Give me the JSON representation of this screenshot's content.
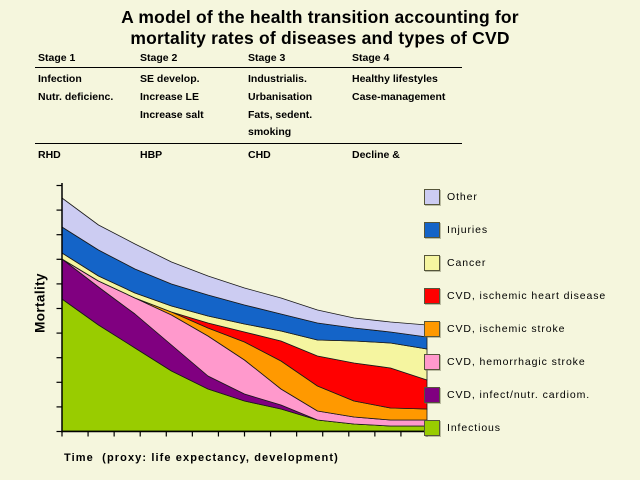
{
  "title": {
    "line1": "A model of the health transition accounting for",
    "line2": "mortality rates of diseases and types of CVD"
  },
  "stage_table": {
    "columns": [
      {
        "header": "Stage 1",
        "rows": [
          "Infection",
          "Nutr. deficienc.",
          "",
          ""
        ],
        "footer": "RHD"
      },
      {
        "header": "Stage 2",
        "rows": [
          "SE develop.",
          "Increase LE",
          "Increase salt",
          ""
        ],
        "footer": "HBP"
      },
      {
        "header": "Stage 3",
        "rows": [
          "Industrialis.",
          "Urbanisation",
          "Fats, sedent.",
          "smoking"
        ],
        "footer": "CHD"
      },
      {
        "header": "Stage 4",
        "rows": [
          "Healthy lifestyles",
          "Case-management",
          "",
          ""
        ],
        "footer": "Decline &"
      }
    ]
  },
  "chart_data": {
    "type": "area",
    "stacked": true,
    "title": "",
    "xlabel": "Time  (proxy: life expectancy, development)",
    "ylabel": "Mortality",
    "x": [
      0,
      1,
      2,
      3,
      4,
      5,
      6,
      7,
      8,
      9,
      10
    ],
    "x_axis": {
      "tick_count": 15,
      "tick_labels_shown": false
    },
    "y_axis": {
      "tick_count": 11,
      "tick_labels_shown": false,
      "units": "relative mortality (axis unlabeled)"
    },
    "ylim": [
      0,
      250
    ],
    "grid": false,
    "legend_position": "right",
    "series": [
      {
        "name": "Infectious",
        "color": "#99CC00",
        "values": [
          132,
          106,
          83,
          60,
          42,
          30,
          22,
          11,
          7,
          5,
          5
        ]
      },
      {
        "name": "CVD, infect/nutr. cardiom.",
        "color": "#800080",
        "values": [
          40,
          38,
          34,
          26,
          13,
          7,
          4,
          0,
          0,
          0,
          0
        ]
      },
      {
        "name": "CVD, hemorrhagic stroke",
        "color": "#FF99CC",
        "values": [
          0,
          6,
          16,
          30,
          40,
          34,
          16,
          9,
          7,
          6,
          6
        ]
      },
      {
        "name": "CVD, ischemic stroke",
        "color": "#FF9900",
        "values": [
          0,
          0,
          0,
          3,
          8,
          18,
          28,
          25,
          16,
          12,
          11
        ]
      },
      {
        "name": "CVD, ischemic heart disease",
        "color": "#FF0000",
        "values": [
          0,
          0,
          0,
          0,
          5,
          10,
          20,
          30,
          38,
          40,
          29
        ]
      },
      {
        "name": "Cancer",
        "color": "#F5F5A0",
        "values": [
          6,
          5,
          5,
          6,
          7,
          8,
          10,
          16,
          22,
          25,
          31
        ]
      },
      {
        "name": "Injuries",
        "color": "#1464C8",
        "values": [
          26,
          26,
          24,
          22,
          21,
          19,
          17,
          17,
          13,
          11,
          12
        ]
      },
      {
        "name": "Other",
        "color": "#CCCCF2",
        "values": [
          29,
          25,
          25,
          22,
          19,
          17,
          16,
          13,
          10,
          10,
          12
        ]
      }
    ]
  },
  "legend": {
    "items": [
      {
        "label": "Other",
        "color": "#CCCCF2"
      },
      {
        "label": "Injuries",
        "color": "#1464C8"
      },
      {
        "label": "Cancer",
        "color": "#F5F5A0"
      },
      {
        "label": "CVD, ischemic heart disease",
        "color": "#FF0000"
      },
      {
        "label": "CVD, ischemic stroke",
        "color": "#FF9900"
      },
      {
        "label": "CVD, hemorrhagic stroke",
        "color": "#FF99CC"
      },
      {
        "label": "CVD, infect/nutr. cardiom.",
        "color": "#800080"
      },
      {
        "label": "Infectious",
        "color": "#99CC00"
      }
    ]
  },
  "colors": {
    "background": "#F5F6DD",
    "text": "#000000",
    "band_outline": "#1A1A1A"
  }
}
